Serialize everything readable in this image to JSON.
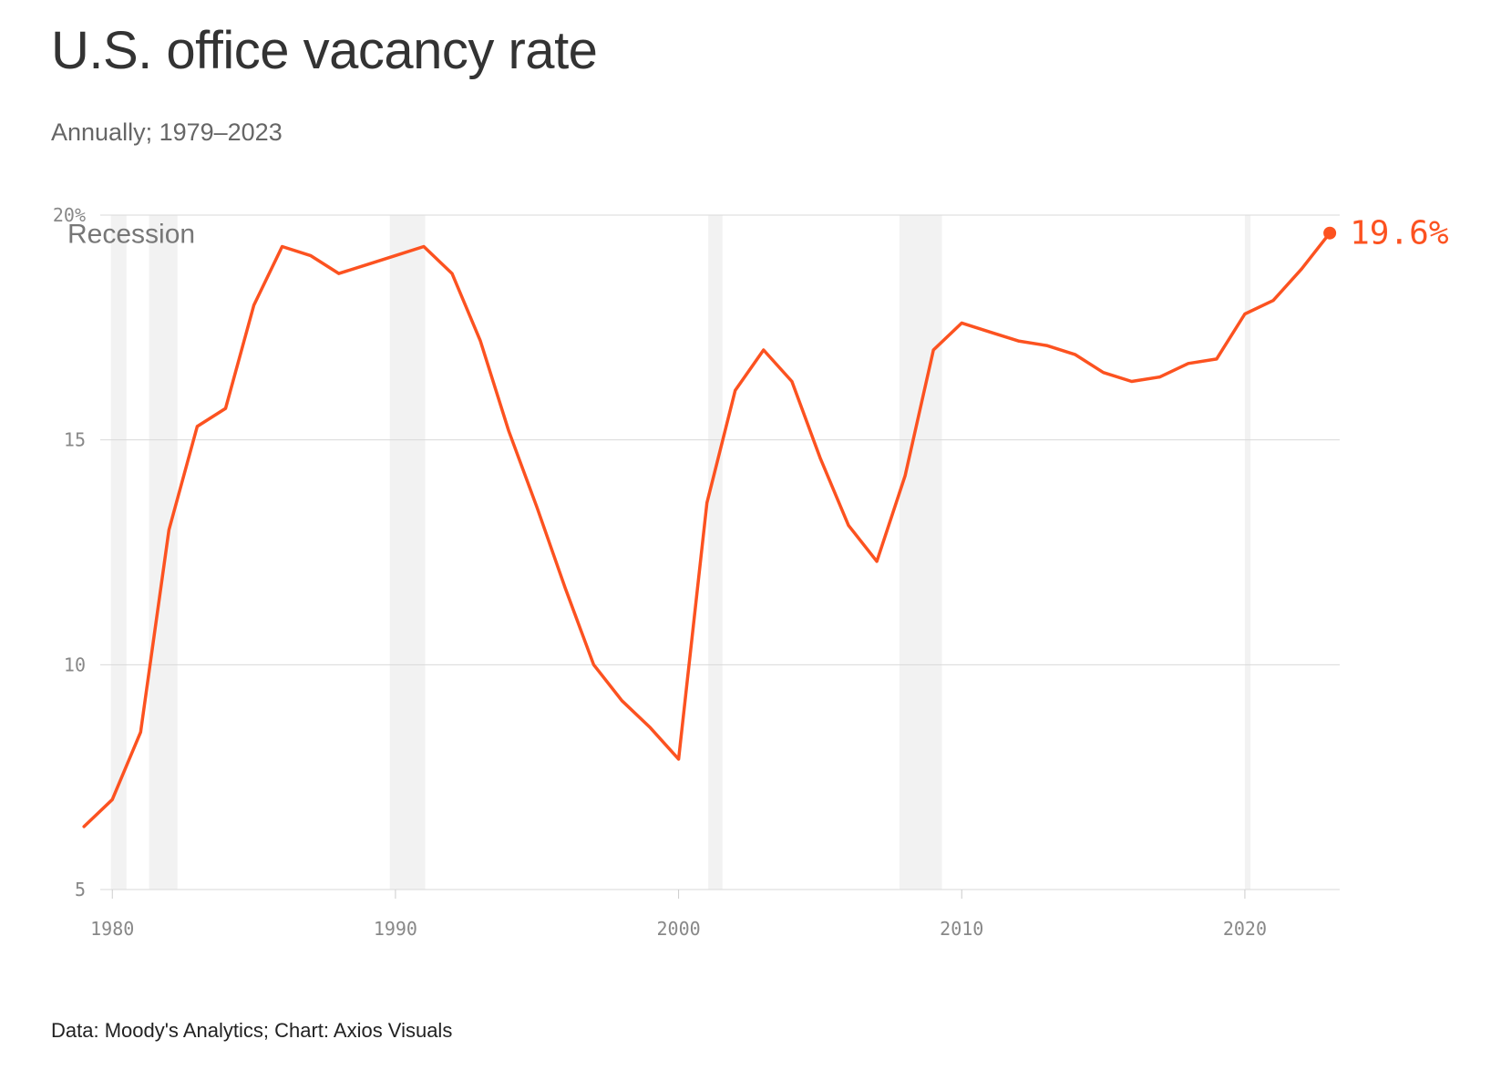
{
  "title": "U.S. office vacancy rate",
  "subtitle": "Annually; 1979–2023",
  "source": "Data: Moody's Analytics; Chart: Axios Visuals",
  "colors": {
    "line": "#fc5220",
    "recession": "#f2f2f2",
    "grid": "#d9d9d9",
    "text": "#333333"
  },
  "chart_data": {
    "type": "line",
    "title": "U.S. office vacancy rate",
    "subtitle": "Annually; 1979–2023",
    "x": [
      1979,
      1980,
      1981,
      1982,
      1983,
      1984,
      1985,
      1986,
      1987,
      1988,
      1989,
      1990,
      1991,
      1992,
      1993,
      1994,
      1995,
      1996,
      1997,
      1998,
      1999,
      2000,
      2001,
      2002,
      2003,
      2004,
      2005,
      2006,
      2007,
      2008,
      2009,
      2010,
      2011,
      2012,
      2013,
      2014,
      2015,
      2016,
      2017,
      2018,
      2019,
      2020,
      2021,
      2022,
      2023
    ],
    "series": [
      {
        "values": [
          6.4,
          7.0,
          8.5,
          13.0,
          15.3,
          15.7,
          18.0,
          19.3,
          19.1,
          18.7,
          18.9,
          19.1,
          19.3,
          18.7,
          17.2,
          15.2,
          13.5,
          11.7,
          10.0,
          9.2,
          8.6,
          7.9,
          13.6,
          16.1,
          17.0,
          16.3,
          14.6,
          13.1,
          12.3,
          14.2,
          17.0,
          17.6,
          17.4,
          17.2,
          17.1,
          16.9,
          16.5,
          16.3,
          16.4,
          16.7,
          16.8,
          17.8,
          18.1,
          18.8,
          19.6
        ]
      }
    ],
    "recessions": [
      [
        1979.95,
        1980.5
      ],
      [
        1981.3,
        1982.3
      ],
      [
        1989.8,
        1991.05
      ],
      [
        2001.05,
        2001.55
      ],
      [
        2007.8,
        2009.3
      ],
      [
        2020.0,
        2020.2
      ]
    ],
    "recession_label": "Recession",
    "end_label": "19.6%",
    "xlim": [
      1977.9,
      2023.35
    ],
    "ylim": [
      5,
      20
    ],
    "y_ticks": [
      5,
      10,
      15,
      20
    ],
    "y_tick_labels": [
      "5",
      "10",
      "15",
      "20%"
    ],
    "x_ticks": [
      1980,
      1990,
      2000,
      2010,
      2020
    ],
    "x_tick_labels": [
      "1980",
      "1990",
      "2000",
      "2010",
      "2020"
    ],
    "grid": true
  }
}
